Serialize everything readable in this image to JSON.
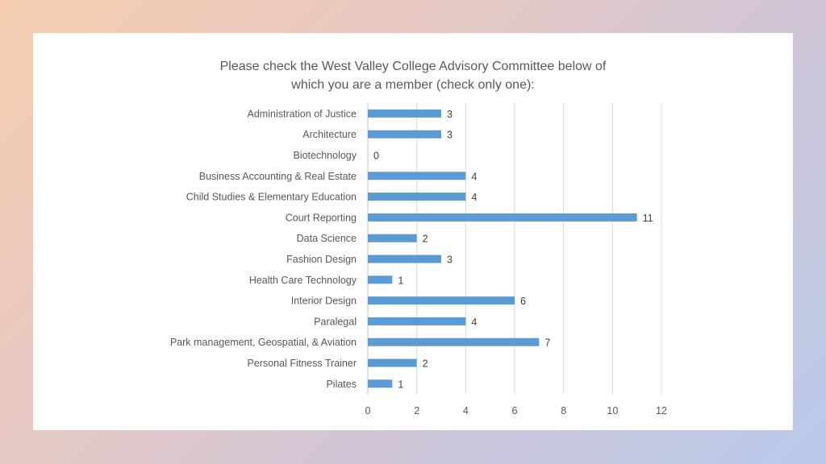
{
  "chart_data": {
    "type": "bar",
    "orientation": "horizontal",
    "title": [
      "Please check the West Valley College Advisory Committee below of",
      "which you are a member (check only one):"
    ],
    "categories": [
      "Administration of Justice",
      "Architecture",
      "Biotechnology",
      "Business Accounting & Real Estate",
      "Child Studies & Elementary Education",
      "Court Reporting",
      "Data Science",
      "Fashion Design",
      "Health Care Technology",
      "Interior Design",
      "Paralegal",
      "Park management, Geospatial, & Aviation",
      "Personal Fitness Trainer",
      "Pilates"
    ],
    "values": [
      3,
      3,
      0,
      4,
      4,
      11,
      2,
      3,
      1,
      6,
      4,
      7,
      2,
      1
    ],
    "xlim": [
      0,
      12
    ],
    "x_ticks": [
      0,
      2,
      4,
      6,
      8,
      10,
      12
    ],
    "grid": "vertical",
    "data_labels": true,
    "bar_color": "#5b9bd5"
  }
}
